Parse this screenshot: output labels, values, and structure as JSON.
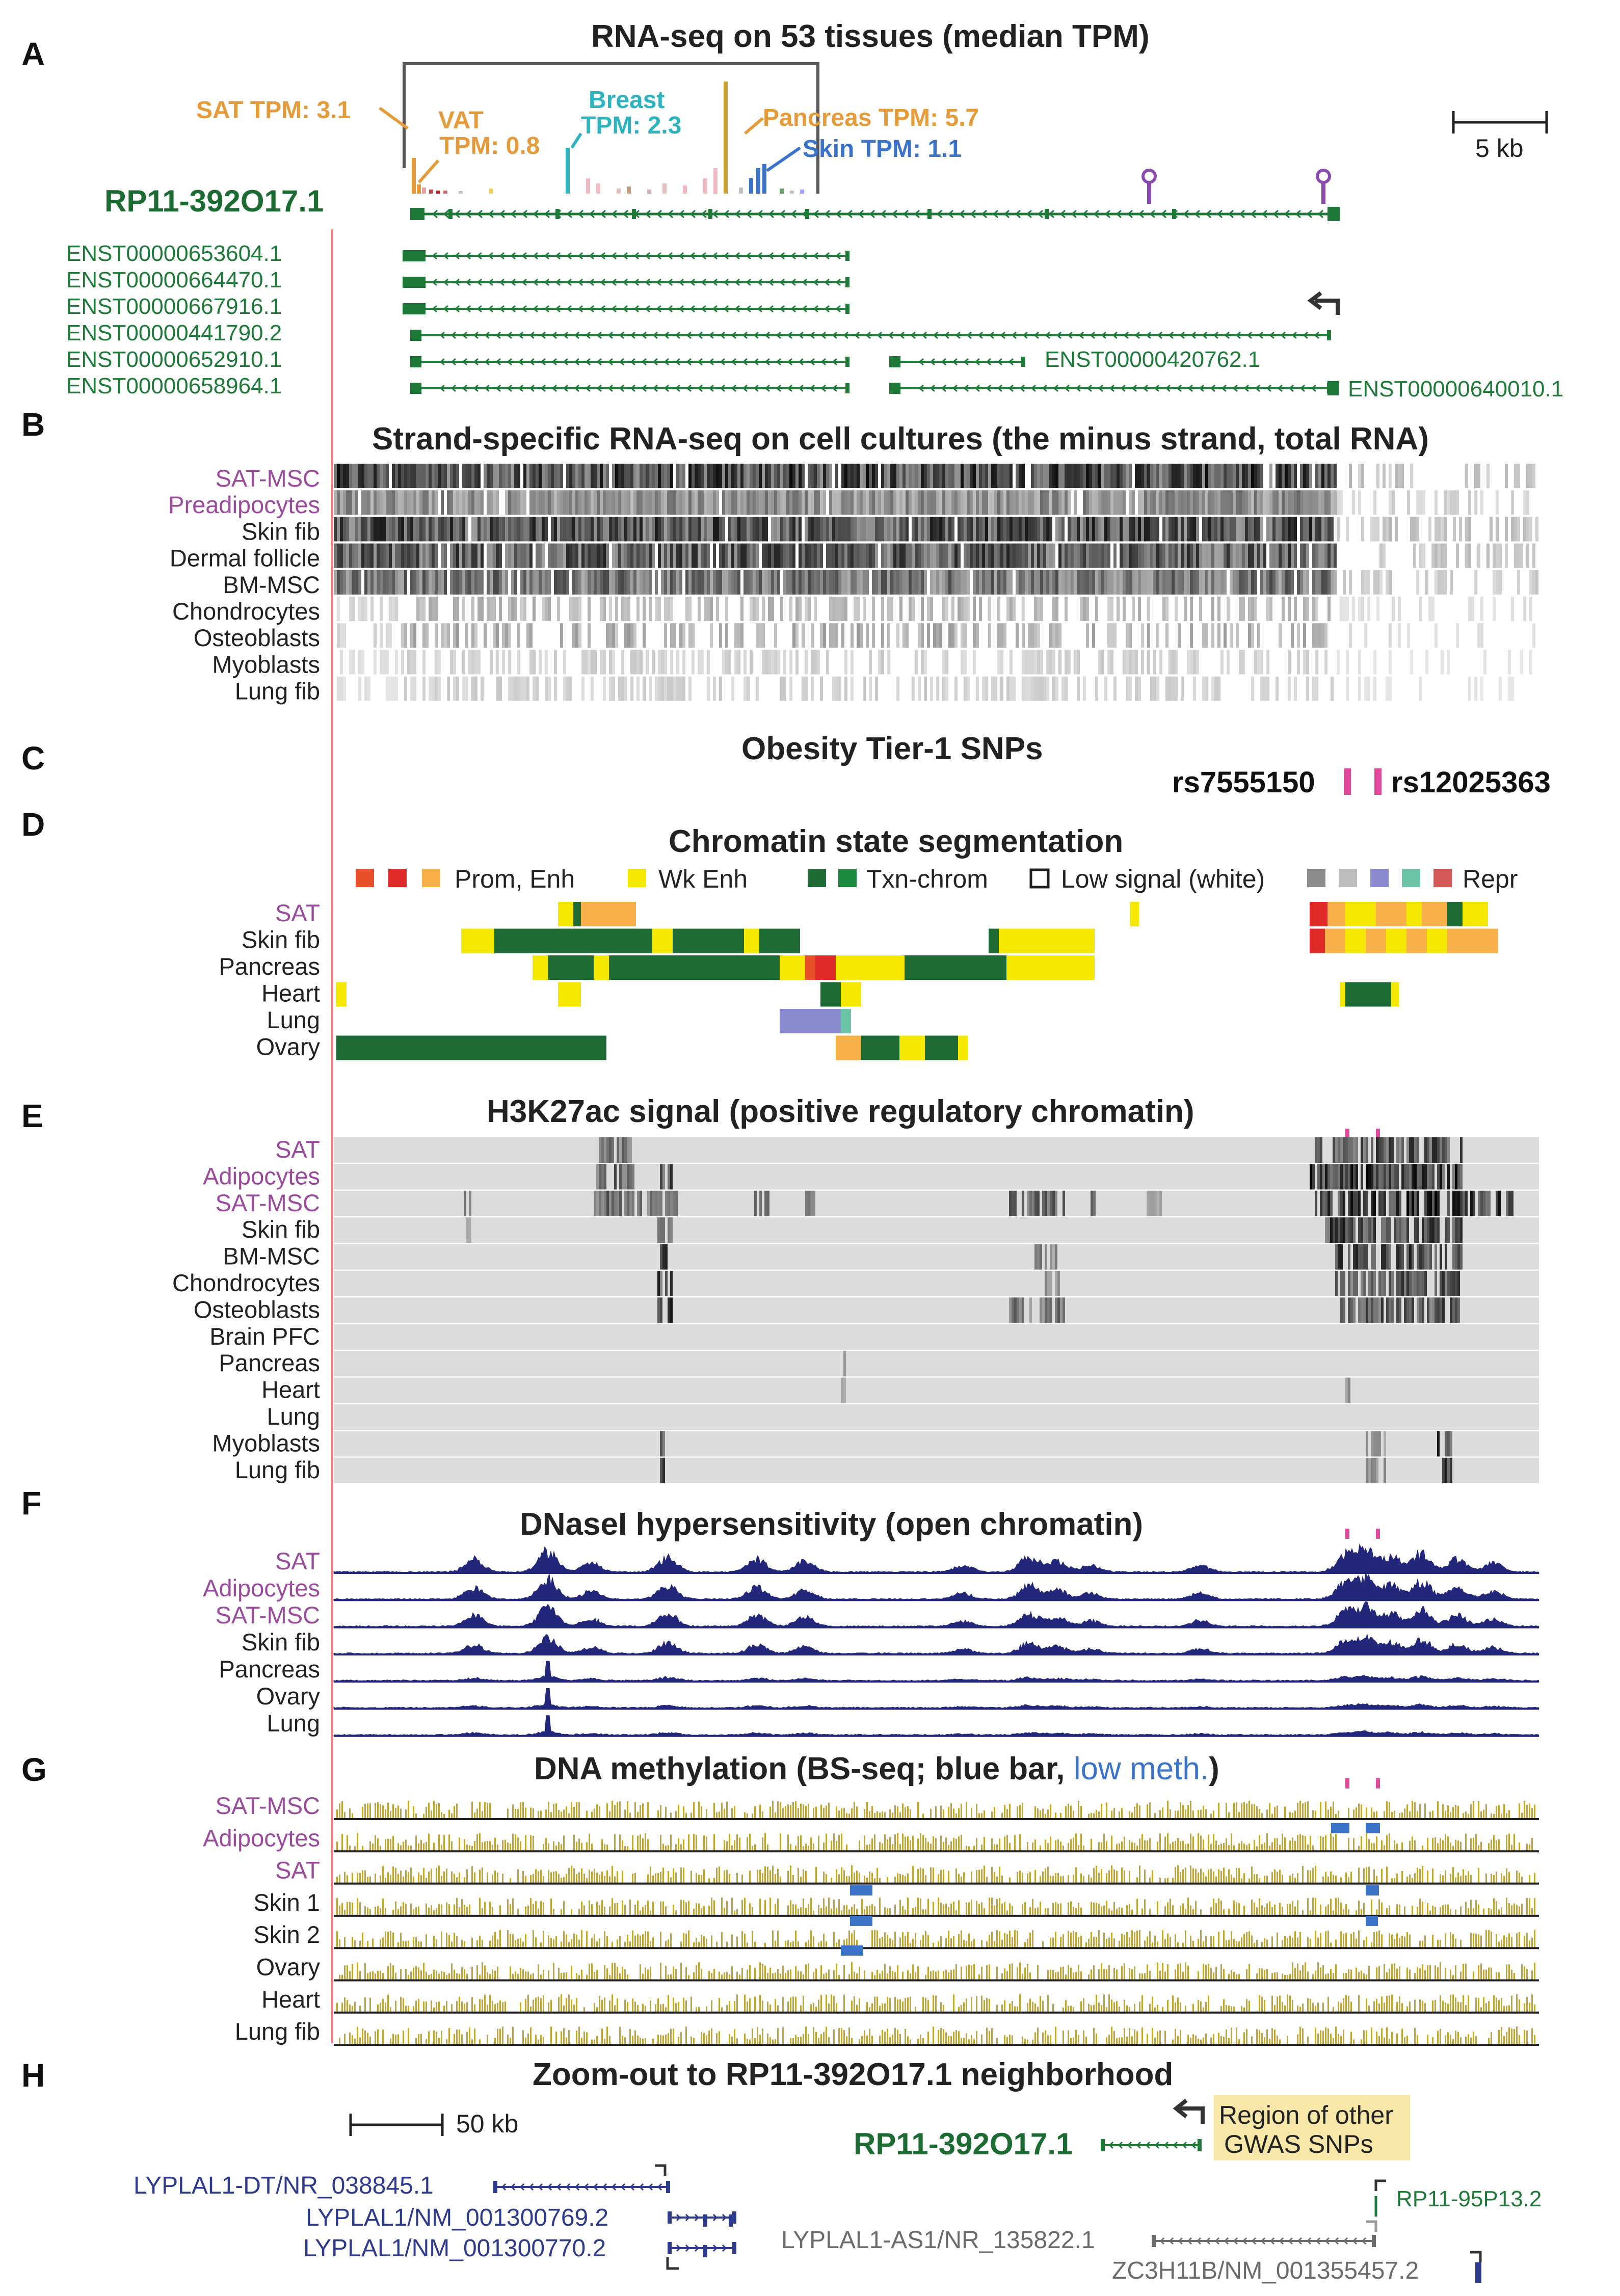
{
  "panels": {
    "A": {
      "letter": "A",
      "title": "RNA-seq on 53 tissues (median TPM)",
      "gene": "RP11-392O17.1",
      "scale_bar": "5 kb",
      "annotations": {
        "sat": "SAT TPM: 3.1",
        "vat_line1": "VAT",
        "vat_line2": "TPM: 0.8",
        "breast_line1": "Breast",
        "breast_line2": "TPM: 2.3",
        "pancreas": "Pancreas TPM: 5.7",
        "skin": "Skin TPM: 1.1"
      },
      "transcripts": [
        "ENST00000653604.1",
        "ENST00000664470.1",
        "ENST00000667916.1",
        "ENST00000441790.2",
        "ENST00000652910.1",
        "ENST00000658964.1"
      ],
      "extra_transcripts": [
        "ENST00000420762.1",
        "ENST00000640010.1"
      ]
    },
    "B": {
      "letter": "B",
      "title": "Strand-specific RNA-seq on cell cultures (the minus strand, total RNA)",
      "tracks": [
        {
          "name": "SAT-MSC",
          "color": "#9b4b9b"
        },
        {
          "name": "Preadipocytes",
          "color": "#9b4b9b"
        },
        {
          "name": "Skin fib",
          "color": "#222222"
        },
        {
          "name": "Dermal follicle",
          "color": "#222222"
        },
        {
          "name": "BM-MSC",
          "color": "#222222"
        },
        {
          "name": "Chondrocytes",
          "color": "#222222"
        },
        {
          "name": "Osteoblasts",
          "color": "#222222"
        },
        {
          "name": "Myoblasts",
          "color": "#222222"
        },
        {
          "name": "Lung fib",
          "color": "#222222"
        }
      ]
    },
    "C": {
      "letter": "C",
      "title": "Obesity Tier-1 SNPs",
      "snp1": "rs7555150",
      "snp2": "rs12025363"
    },
    "D": {
      "letter": "D",
      "title": "Chromatin state segmentation",
      "legend": [
        "Prom, Enh",
        "Wk Enh",
        "Txn-chrom",
        "Low signal (white)",
        "Repr"
      ],
      "tracks": [
        {
          "name": "SAT",
          "color": "#9b4b9b"
        },
        {
          "name": "Skin fib",
          "color": "#222222"
        },
        {
          "name": "Pancreas",
          "color": "#222222"
        },
        {
          "name": "Heart",
          "color": "#222222"
        },
        {
          "name": "Lung",
          "color": "#222222"
        },
        {
          "name": "Ovary",
          "color": "#222222"
        }
      ]
    },
    "E": {
      "letter": "E",
      "title": "H3K27ac signal (positive regulatory chromatin)",
      "tracks": [
        {
          "name": "SAT",
          "color": "#9b4b9b"
        },
        {
          "name": "Adipocytes",
          "color": "#9b4b9b"
        },
        {
          "name": "SAT-MSC",
          "color": "#9b4b9b"
        },
        {
          "name": "Skin fib",
          "color": "#222222"
        },
        {
          "name": "BM-MSC",
          "color": "#222222"
        },
        {
          "name": "Chondrocytes",
          "color": "#222222"
        },
        {
          "name": "Osteoblasts",
          "color": "#222222"
        },
        {
          "name": "Brain PFC",
          "color": "#222222"
        },
        {
          "name": "Pancreas",
          "color": "#222222"
        },
        {
          "name": "Heart",
          "color": "#222222"
        },
        {
          "name": "Lung",
          "color": "#222222"
        },
        {
          "name": "Myoblasts",
          "color": "#222222"
        },
        {
          "name": "Lung fib",
          "color": "#222222"
        }
      ]
    },
    "F": {
      "letter": "F",
      "title": "DNaseI hypersensitivity (open chromatin)",
      "tracks": [
        {
          "name": "SAT",
          "color": "#9b4b9b"
        },
        {
          "name": "Adipocytes",
          "color": "#9b4b9b"
        },
        {
          "name": "SAT-MSC",
          "color": "#9b4b9b"
        },
        {
          "name": "Skin fib",
          "color": "#222222"
        },
        {
          "name": "Pancreas",
          "color": "#222222"
        },
        {
          "name": "Ovary",
          "color": "#222222"
        },
        {
          "name": "Lung",
          "color": "#222222"
        }
      ]
    },
    "G": {
      "letter": "G",
      "title_a": "DNA methylation (BS-seq; blue bar, ",
      "title_b": "low meth.",
      "title_c": ")",
      "tracks": [
        {
          "name": "SAT-MSC",
          "color": "#9b4b9b"
        },
        {
          "name": "Adipocytes",
          "color": "#9b4b9b"
        },
        {
          "name": "SAT",
          "color": "#9b4b9b"
        },
        {
          "name": "Skin 1",
          "color": "#222222"
        },
        {
          "name": "Skin 2",
          "color": "#222222"
        },
        {
          "name": "Ovary",
          "color": "#222222"
        },
        {
          "name": "Heart",
          "color": "#222222"
        },
        {
          "name": "Lung fib",
          "color": "#222222"
        }
      ]
    },
    "H": {
      "letter": "H",
      "title": "Zoom-out to RP11-392O17.1 neighborhood",
      "scale_bar": "50 kb",
      "gene": "RP11-392O17.1",
      "region_line1": "Region of other",
      "region_line2": "GWAS SNPs",
      "genes": {
        "lyplal1_dt": "LYPLAL1-DT/NR_038845.1",
        "lyplal1_a": "LYPLAL1/NM_001300769.2",
        "lyplal1_b": "LYPLAL1/NM_001300770.2",
        "lyplal1_as1": "LYPLAL1-AS1/NR_135822.1",
        "zc3h11b": "ZC3H11B/NM_001355457.2",
        "rp11_95p13": "RP11-95P13.2"
      }
    }
  },
  "colors": {
    "green": "#1f7a3a",
    "purple": "#9b4b9b",
    "orange": "#e59b3a",
    "cyan": "#2fb3bf",
    "blue": "#3a73c8",
    "navy": "#23277a",
    "gold": "#c2a531",
    "pink": "#e0489a"
  }
}
